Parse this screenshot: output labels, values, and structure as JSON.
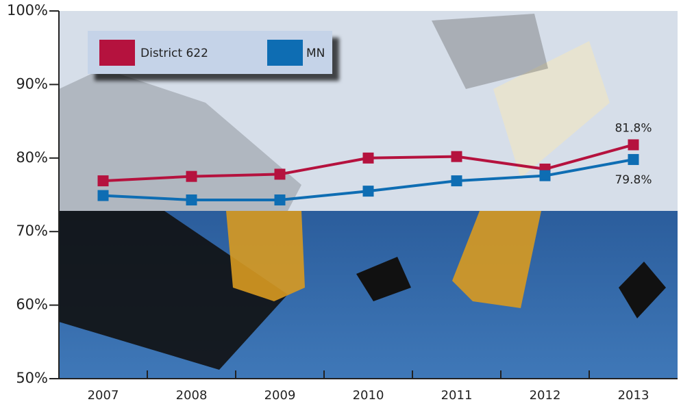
{
  "chart_data": {
    "type": "line",
    "categories": [
      "2007",
      "2008",
      "2009",
      "2010",
      "2011",
      "2012",
      "2013"
    ],
    "series": [
      {
        "name": "District 622",
        "color": "#b5123e",
        "values": [
          76.9,
          77.5,
          77.8,
          80.0,
          80.2,
          78.5,
          81.8
        ],
        "value_labels": [
          null,
          null,
          null,
          null,
          null,
          null,
          "81.8%"
        ]
      },
      {
        "name": "MN",
        "color": "#0e6db3",
        "values": [
          74.9,
          74.3,
          74.3,
          75.5,
          76.9,
          77.6,
          79.8
        ],
        "value_labels": [
          null,
          null,
          null,
          null,
          null,
          null,
          "79.8%"
        ]
      }
    ],
    "ylim": [
      50,
      100
    ],
    "yticks": [
      {
        "value": 50,
        "label": "50%"
      },
      {
        "value": 60,
        "label": "60%"
      },
      {
        "value": 70,
        "label": "70%"
      },
      {
        "value": 80,
        "label": "80%"
      },
      {
        "value": 90,
        "label": "90%"
      },
      {
        "value": 100,
        "label": "100%"
      }
    ],
    "legend": "upper left"
  }
}
